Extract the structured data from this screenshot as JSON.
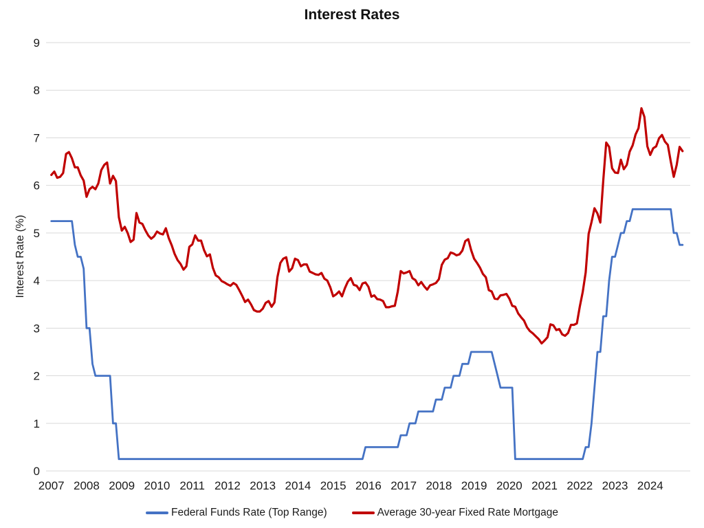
{
  "chart_data": {
    "type": "line",
    "title": "Interest Rates",
    "ylabel": "Interest Rate (%)",
    "xlabel": "",
    "ylim": [
      0,
      9
    ],
    "y_ticks": [
      0,
      1,
      2,
      3,
      4,
      5,
      6,
      7,
      8,
      9
    ],
    "x_tick_labels": [
      "2007",
      "2008",
      "2009",
      "2010",
      "2011",
      "2012",
      "2013",
      "2014",
      "2015",
      "2016",
      "2017",
      "2018",
      "2019",
      "2020",
      "2021",
      "2022",
      "2023",
      "2024"
    ],
    "x_resolution": "monthly, Jan 2007 - Dec 2024",
    "grid": "horizontal",
    "legend_position": "bottom",
    "colors": {
      "grid": "#d9d9d9",
      "text": "#1b1b1b"
    },
    "series": [
      {
        "name": "Federal Funds Rate (Top Range)",
        "color": "#4472C4",
        "stroke_width": 2.8,
        "values": [
          5.25,
          5.25,
          5.25,
          5.25,
          5.25,
          5.25,
          5.25,
          5.25,
          4.75,
          4.5,
          4.5,
          4.25,
          3,
          3,
          2.25,
          2,
          2,
          2,
          2,
          2,
          2,
          1,
          1,
          0.25,
          0.25,
          0.25,
          0.25,
          0.25,
          0.25,
          0.25,
          0.25,
          0.25,
          0.25,
          0.25,
          0.25,
          0.25,
          0.25,
          0.25,
          0.25,
          0.25,
          0.25,
          0.25,
          0.25,
          0.25,
          0.25,
          0.25,
          0.25,
          0.25,
          0.25,
          0.25,
          0.25,
          0.25,
          0.25,
          0.25,
          0.25,
          0.25,
          0.25,
          0.25,
          0.25,
          0.25,
          0.25,
          0.25,
          0.25,
          0.25,
          0.25,
          0.25,
          0.25,
          0.25,
          0.25,
          0.25,
          0.25,
          0.25,
          0.25,
          0.25,
          0.25,
          0.25,
          0.25,
          0.25,
          0.25,
          0.25,
          0.25,
          0.25,
          0.25,
          0.25,
          0.25,
          0.25,
          0.25,
          0.25,
          0.25,
          0.25,
          0.25,
          0.25,
          0.25,
          0.25,
          0.25,
          0.25,
          0.25,
          0.25,
          0.25,
          0.25,
          0.25,
          0.25,
          0.25,
          0.25,
          0.25,
          0.25,
          0.25,
          0.5,
          0.5,
          0.5,
          0.5,
          0.5,
          0.5,
          0.5,
          0.5,
          0.5,
          0.5,
          0.5,
          0.5,
          0.75,
          0.75,
          0.75,
          1,
          1,
          1,
          1.25,
          1.25,
          1.25,
          1.25,
          1.25,
          1.25,
          1.5,
          1.5,
          1.5,
          1.75,
          1.75,
          1.75,
          2,
          2,
          2,
          2.25,
          2.25,
          2.25,
          2.5,
          2.5,
          2.5,
          2.5,
          2.5,
          2.5,
          2.5,
          2.5,
          2.25,
          2,
          1.75,
          1.75,
          1.75,
          1.75,
          1.75,
          0.25,
          0.25,
          0.25,
          0.25,
          0.25,
          0.25,
          0.25,
          0.25,
          0.25,
          0.25,
          0.25,
          0.25,
          0.25,
          0.25,
          0.25,
          0.25,
          0.25,
          0.25,
          0.25,
          0.25,
          0.25,
          0.25,
          0.25,
          0.25,
          0.5,
          0.5,
          1,
          1.75,
          2.5,
          2.5,
          3.25,
          3.25,
          4,
          4.5,
          4.5,
          4.75,
          5,
          5,
          5.25,
          5.25,
          5.5,
          5.5,
          5.5,
          5.5,
          5.5,
          5.5,
          5.5,
          5.5,
          5.5,
          5.5,
          5.5,
          5.5,
          5.5,
          5.5,
          5,
          5,
          4.75,
          4.75
        ]
      },
      {
        "name": "Average 30-year Fixed Rate Mortgage",
        "color": "#C00000",
        "stroke_width": 3.2,
        "values": [
          6.22,
          6.29,
          6.16,
          6.18,
          6.26,
          6.66,
          6.7,
          6.57,
          6.38,
          6.38,
          6.21,
          6.1,
          5.76,
          5.92,
          5.97,
          5.92,
          6.04,
          6.32,
          6.43,
          6.48,
          6.04,
          6.2,
          6.09,
          5.33,
          5.05,
          5.13,
          5,
          4.81,
          4.86,
          5.42,
          5.22,
          5.19,
          5.06,
          4.95,
          4.88,
          4.93,
          5.03,
          4.99,
          4.97,
          5.1,
          4.89,
          4.74,
          4.56,
          4.43,
          4.35,
          4.23,
          4.3,
          4.71,
          4.76,
          4.95,
          4.84,
          4.84,
          4.64,
          4.51,
          4.55,
          4.27,
          4.11,
          4.07,
          3.99,
          3.96,
          3.92,
          3.89,
          3.95,
          3.91,
          3.8,
          3.68,
          3.55,
          3.6,
          3.5,
          3.38,
          3.35,
          3.35,
          3.41,
          3.53,
          3.57,
          3.45,
          3.54,
          4.07,
          4.37,
          4.46,
          4.49,
          4.19,
          4.26,
          4.46,
          4.43,
          4.3,
          4.34,
          4.34,
          4.19,
          4.16,
          4.13,
          4.12,
          4.16,
          4.04,
          4,
          3.86,
          3.67,
          3.71,
          3.77,
          3.67,
          3.84,
          3.98,
          4.05,
          3.91,
          3.89,
          3.8,
          3.94,
          3.96,
          3.87,
          3.66,
          3.69,
          3.61,
          3.6,
          3.57,
          3.44,
          3.44,
          3.46,
          3.47,
          3.77,
          4.2,
          4.15,
          4.17,
          4.2,
          4.05,
          4.01,
          3.9,
          3.97,
          3.88,
          3.81,
          3.9,
          3.92,
          3.95,
          4.03,
          4.33,
          4.44,
          4.47,
          4.59,
          4.57,
          4.53,
          4.55,
          4.63,
          4.83,
          4.87,
          4.64,
          4.46,
          4.37,
          4.27,
          4.14,
          4.07,
          3.8,
          3.77,
          3.62,
          3.61,
          3.69,
          3.7,
          3.72,
          3.62,
          3.47,
          3.45,
          3.31,
          3.23,
          3.16,
          3.02,
          2.94,
          2.89,
          2.83,
          2.77,
          2.68,
          2.74,
          2.81,
          3.08,
          3.06,
          2.96,
          2.98,
          2.87,
          2.84,
          2.9,
          3.07,
          3.07,
          3.1,
          3.45,
          3.76,
          4.17,
          4.98,
          5.23,
          5.52,
          5.41,
          5.22,
          6.11,
          6.9,
          6.81,
          6.36,
          6.27,
          6.26,
          6.54,
          6.34,
          6.43,
          6.71,
          6.84,
          7.07,
          7.2,
          7.62,
          7.44,
          6.82,
          6.64,
          6.78,
          6.82,
          6.99,
          7.06,
          6.92,
          6.85,
          6.5,
          6.18,
          6.43,
          6.81,
          6.72
        ]
      }
    ]
  }
}
